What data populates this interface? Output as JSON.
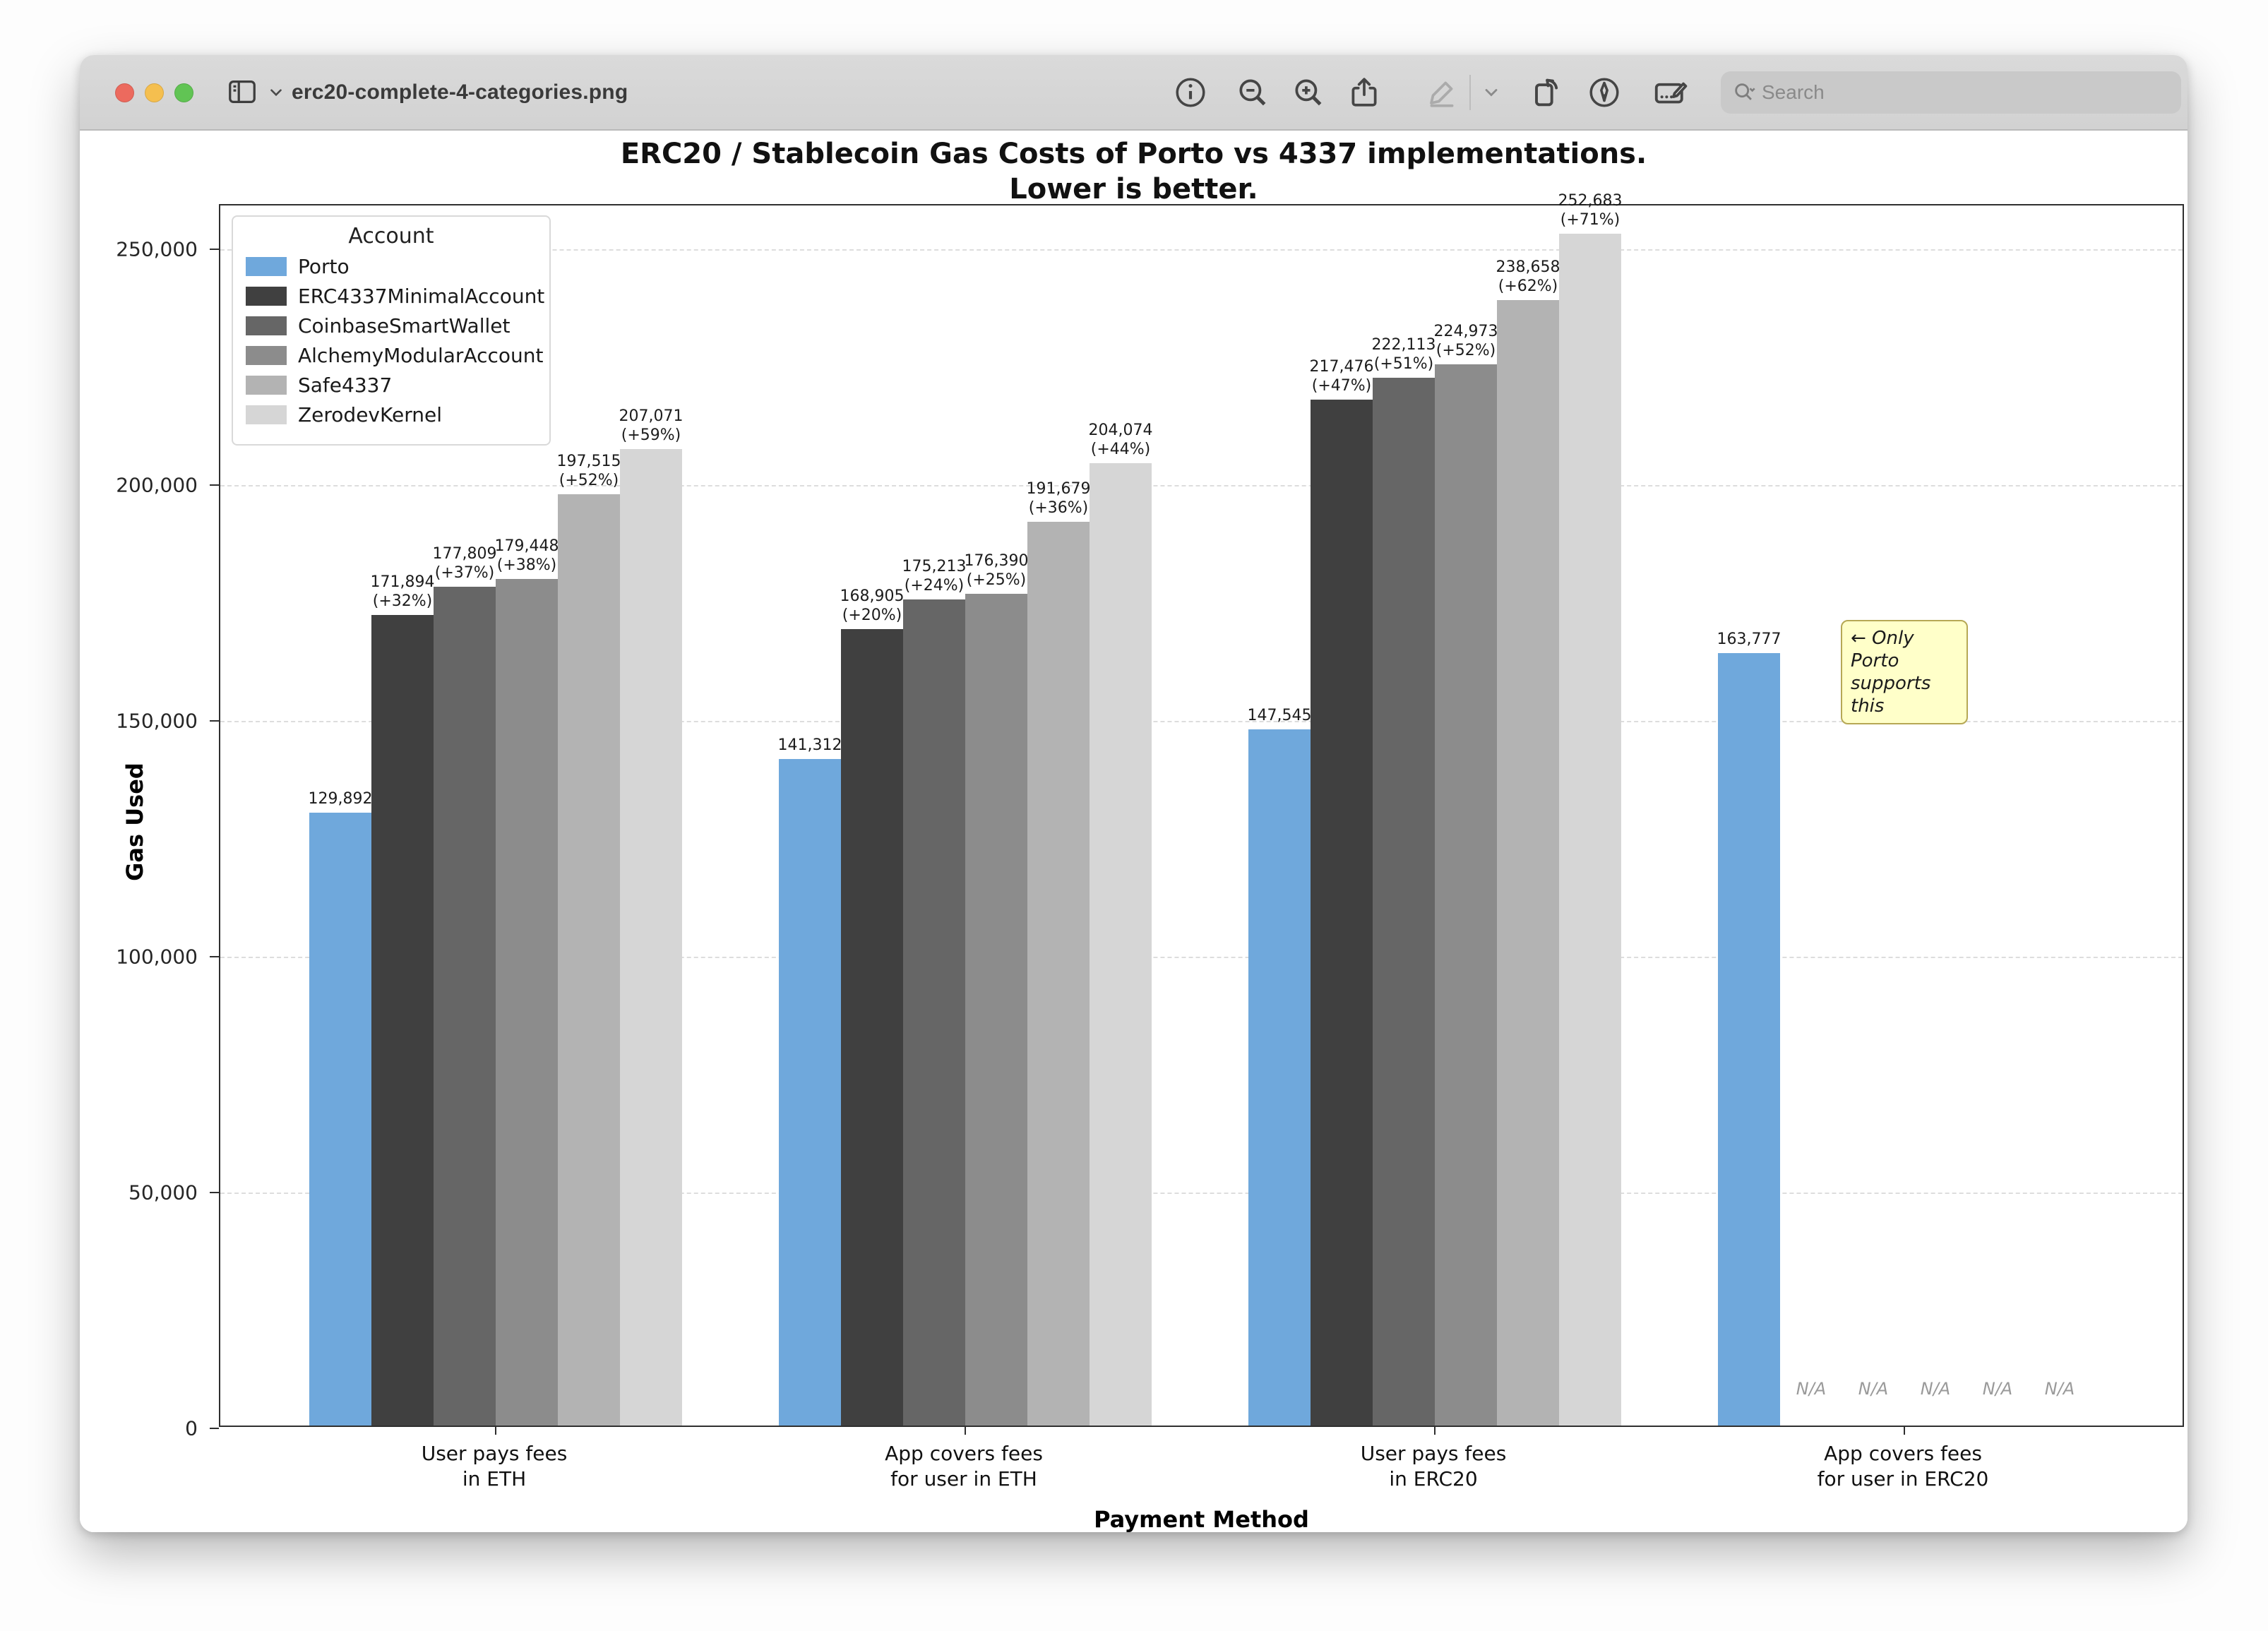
{
  "window": {
    "title": "erc20-complete-4-categories.png",
    "toolbar": {
      "search_placeholder": "Search",
      "buttons": [
        "info",
        "zoom-out",
        "zoom-in",
        "share",
        "markup",
        "markup-options",
        "rotate-left",
        "annotate",
        "text-tool"
      ]
    }
  },
  "chart_data": {
    "type": "bar",
    "title_line1": "ERC20 / Stablecoin Gas Costs of Porto vs 4337 implementations.",
    "title_line2": "Lower is better.",
    "xlabel": "Payment Method",
    "ylabel": "Gas Used",
    "ylim": [
      0,
      259300
    ],
    "yticks": [
      0,
      50000,
      100000,
      150000,
      200000,
      250000
    ],
    "ytick_labels": [
      "0",
      "50,000",
      "100,000",
      "150,000",
      "200,000",
      "250,000"
    ],
    "grid": "horizontal dashed",
    "legend_position": "upper left",
    "legend_title": "Account",
    "categories": [
      [
        "User pays fees",
        "in ETH"
      ],
      [
        "App covers fees",
        "for user in ETH"
      ],
      [
        "User pays fees",
        "in ERC20"
      ],
      [
        "App covers fees",
        "for user in ERC20"
      ]
    ],
    "series": [
      {
        "name": "Porto",
        "color": "#6fa8dc",
        "values": [
          129892,
          141312,
          147545,
          163777
        ],
        "display": [
          "129,892",
          "141,312",
          "147,545",
          "163,777"
        ],
        "pct": [
          null,
          null,
          null,
          null
        ]
      },
      {
        "name": "ERC4337MinimalAccount",
        "color": "#404040",
        "values": [
          171894,
          168905,
          217476,
          null
        ],
        "display": [
          "171,894",
          "168,905",
          "217,476",
          null
        ],
        "pct": [
          "(+32%)",
          "(+20%)",
          "(+47%)",
          null
        ]
      },
      {
        "name": "CoinbaseSmartWallet",
        "color": "#666666",
        "values": [
          177809,
          175213,
          222113,
          null
        ],
        "display": [
          "177,809",
          "175,213",
          "222,113",
          null
        ],
        "pct": [
          "(+37%)",
          "(+24%)",
          "(+51%)",
          null
        ]
      },
      {
        "name": "AlchemyModularAccount",
        "color": "#8c8c8c",
        "values": [
          179448,
          176390,
          224973,
          null
        ],
        "display": [
          "179,448",
          "176,390",
          "224,973",
          null
        ],
        "pct": [
          "(+38%)",
          "(+25%)",
          "(+52%)",
          null
        ]
      },
      {
        "name": "Safe4337",
        "color": "#b3b3b3",
        "values": [
          197515,
          191679,
          238658,
          null
        ],
        "display": [
          "197,515",
          "191,679",
          "238,658",
          null
        ],
        "pct": [
          "(+52%)",
          "(+36%)",
          "(+62%)",
          null
        ]
      },
      {
        "name": "ZerodevKernel",
        "color": "#d6d6d6",
        "values": [
          207071,
          204074,
          252683,
          null
        ],
        "display": [
          "207,071",
          "204,074",
          "252,683",
          null
        ],
        "pct": [
          "(+59%)",
          "(+44%)",
          "(+71%)",
          null
        ]
      }
    ],
    "na_label": "N/A",
    "annotation_line1": "← Only Porto",
    "annotation_line2": "supports this"
  }
}
